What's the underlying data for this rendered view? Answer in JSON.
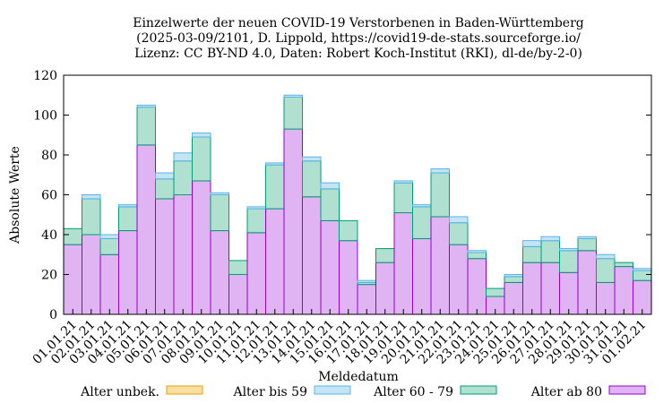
{
  "chart_data": {
    "type": "bar",
    "stacked": true,
    "title": [
      "Einzelwerte der neuen COVID-19 Verstorbenen in Baden-Württemberg",
      "(2025-03-09/2101, D. Lippold, https://covid19-de-stats.sourceforge.io/",
      "Lizenz: CC BY-ND 4.0, Daten: Robert Koch-Institut (RKI), dl-de/by-2-0)"
    ],
    "xlabel": "Meldedatum",
    "ylabel": "Absolute Werte",
    "ylim": [
      0,
      120
    ],
    "yticks": [
      0,
      20,
      40,
      60,
      80,
      100,
      120
    ],
    "grid": false,
    "legend_position": "bottom",
    "categories": [
      "01.01.21",
      "02.01.21",
      "03.01.21",
      "04.01.21",
      "05.01.21",
      "06.01.21",
      "07.01.21",
      "08.01.21",
      "09.01.21",
      "10.01.21",
      "11.01.21",
      "12.01.21",
      "13.01.21",
      "14.01.21",
      "15.01.21",
      "16.01.21",
      "17.01.21",
      "18.01.21",
      "19.01.21",
      "20.01.21",
      "21.01.21",
      "22.01.21",
      "23.01.21",
      "24.01.21",
      "25.01.21",
      "26.01.21",
      "27.01.21",
      "28.01.21",
      "29.01.21",
      "30.01.21",
      "31.01.21",
      "01.02.21"
    ],
    "series": [
      {
        "name": "Alter ab 80",
        "fill": "#e0b3f2",
        "stroke": "#9400d3",
        "values": [
          35,
          40,
          30,
          42,
          85,
          58,
          60,
          67,
          42,
          20,
          41,
          53,
          93,
          59,
          47,
          37,
          15,
          26,
          51,
          38,
          49,
          35,
          28,
          9,
          16,
          26,
          26,
          21,
          32,
          16,
          24,
          17
        ]
      },
      {
        "name": "Alter 60 - 79",
        "fill": "#b0e0d0",
        "stroke": "#009e73",
        "values": [
          8,
          18,
          8,
          12,
          19,
          10,
          17,
          22,
          18,
          7,
          12,
          22,
          16,
          18,
          16,
          10,
          1,
          7,
          15,
          16,
          22,
          11,
          3,
          4,
          3,
          8,
          11,
          11,
          6,
          12,
          2,
          5
        ]
      },
      {
        "name": "Alter bis 59",
        "fill": "#c4e4f6",
        "stroke": "#56b4e9",
        "values": [
          0,
          2,
          2,
          1,
          1,
          3,
          4,
          2,
          1,
          0,
          1,
          1,
          1,
          2,
          3,
          0,
          1,
          0,
          1,
          1,
          2,
          3,
          1,
          0,
          1,
          3,
          2,
          1,
          1,
          2,
          0,
          1
        ]
      },
      {
        "name": "Alter unbek.",
        "fill": "#f9dfa3",
        "stroke": "#e69f00",
        "values": [
          0,
          0,
          0,
          0,
          0,
          0,
          0,
          0,
          0,
          0,
          0,
          0,
          0,
          0,
          0,
          0,
          0,
          0,
          0,
          0,
          0,
          0,
          0,
          0,
          0,
          0,
          0,
          0,
          0,
          0,
          0,
          0
        ]
      }
    ]
  }
}
